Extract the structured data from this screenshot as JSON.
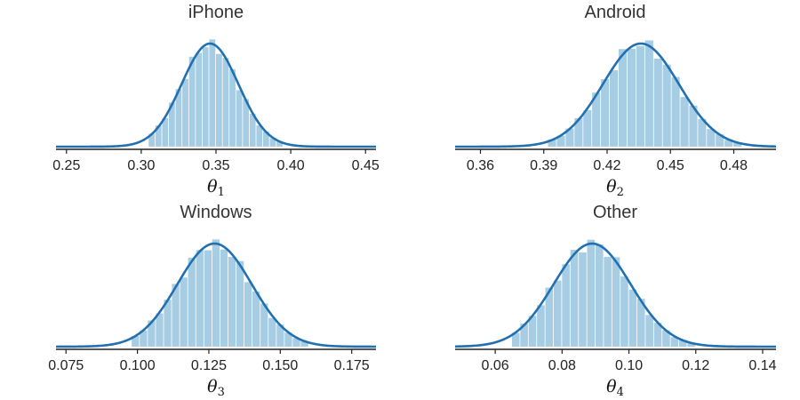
{
  "colors": {
    "hist": "#a6cde3",
    "curve": "#2270b0",
    "axis": "#222222"
  },
  "chart_data": [
    {
      "type": "histogram-with-density",
      "title": "iPhone",
      "xlabel": "θ",
      "xlabel_sub": "1",
      "xlim": [
        0.243,
        0.457
      ],
      "xticks": [
        0.25,
        0.3,
        0.35,
        0.4,
        0.45
      ],
      "tick_labels": [
        "0.25",
        "0.30",
        "0.35",
        "0.40",
        "0.45"
      ],
      "density": {
        "mean": 0.346,
        "sd": 0.019
      },
      "hist": {
        "range": [
          0.305,
          0.395
        ],
        "bins": 20
      },
      "grid": false
    },
    {
      "type": "histogram-with-density",
      "title": "Android",
      "xlabel": "θ",
      "xlabel_sub": "2",
      "xlim": [
        0.348,
        0.5
      ],
      "xticks": [
        0.36,
        0.39,
        0.42,
        0.45,
        0.48
      ],
      "tick_labels": [
        "0.36",
        "0.39",
        "0.42",
        "0.45",
        "0.48"
      ],
      "density": {
        "mean": 0.436,
        "sd": 0.018
      },
      "hist": {
        "range": [
          0.392,
          0.484
        ],
        "bins": 22
      },
      "grid": false
    },
    {
      "type": "histogram-with-density",
      "title": "Windows",
      "xlabel": "θ",
      "xlabel_sub": "3",
      "xlim": [
        0.0715,
        0.1835
      ],
      "xticks": [
        0.075,
        0.1,
        0.125,
        0.15,
        0.175
      ],
      "tick_labels": [
        "0.075",
        "0.100",
        "0.125",
        "0.150",
        "0.175"
      ],
      "density": {
        "mean": 0.127,
        "sd": 0.013
      },
      "hist": {
        "range": [
          0.098,
          0.16
        ],
        "bins": 22
      },
      "grid": false
    },
    {
      "type": "histogram-with-density",
      "title": "Other",
      "xlabel": "θ",
      "xlabel_sub": "4",
      "xlim": [
        0.048,
        0.144
      ],
      "xticks": [
        0.06,
        0.08,
        0.1,
        0.12,
        0.14
      ],
      "tick_labels": [
        "0.06",
        "0.08",
        "0.10",
        "0.12",
        "0.14"
      ],
      "density": {
        "mean": 0.089,
        "sd": 0.0115
      },
      "hist": {
        "range": [
          0.065,
          0.12
        ],
        "bins": 22
      },
      "grid": false
    }
  ]
}
